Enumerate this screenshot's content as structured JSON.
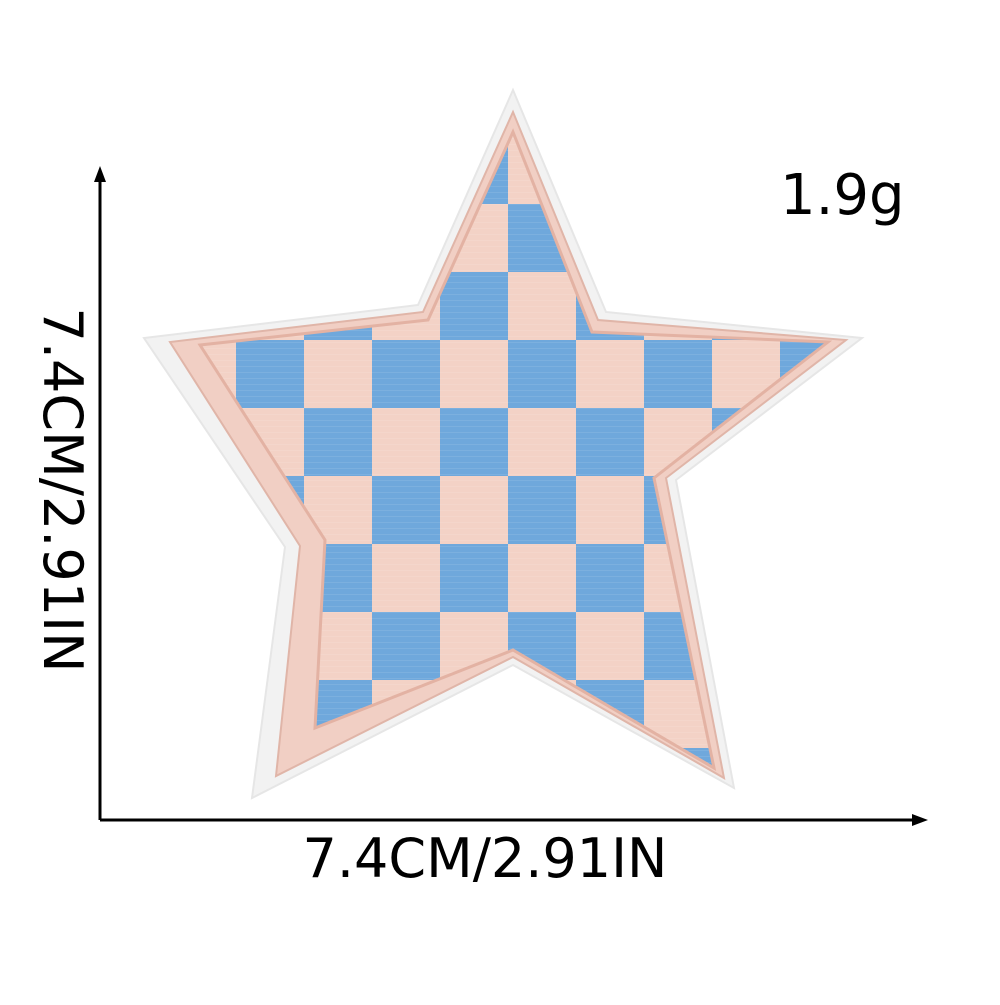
{
  "product": {
    "weight": "1.9g",
    "width_dimension": "7.4CM/2.91IN",
    "height_dimension": "7.4CM/2.91IN"
  },
  "colors": {
    "background": "#ffffff",
    "felt_border": "#f2f2f2",
    "satin_border": "#f1cfc4",
    "check_light": "#f3d2c6",
    "check_blue": "#6fa8dc",
    "axis": "#000000"
  },
  "icons": {
    "patch": "star-patch-icon",
    "arrow_up": "arrow-up-icon",
    "arrow_right": "arrow-right-icon"
  }
}
